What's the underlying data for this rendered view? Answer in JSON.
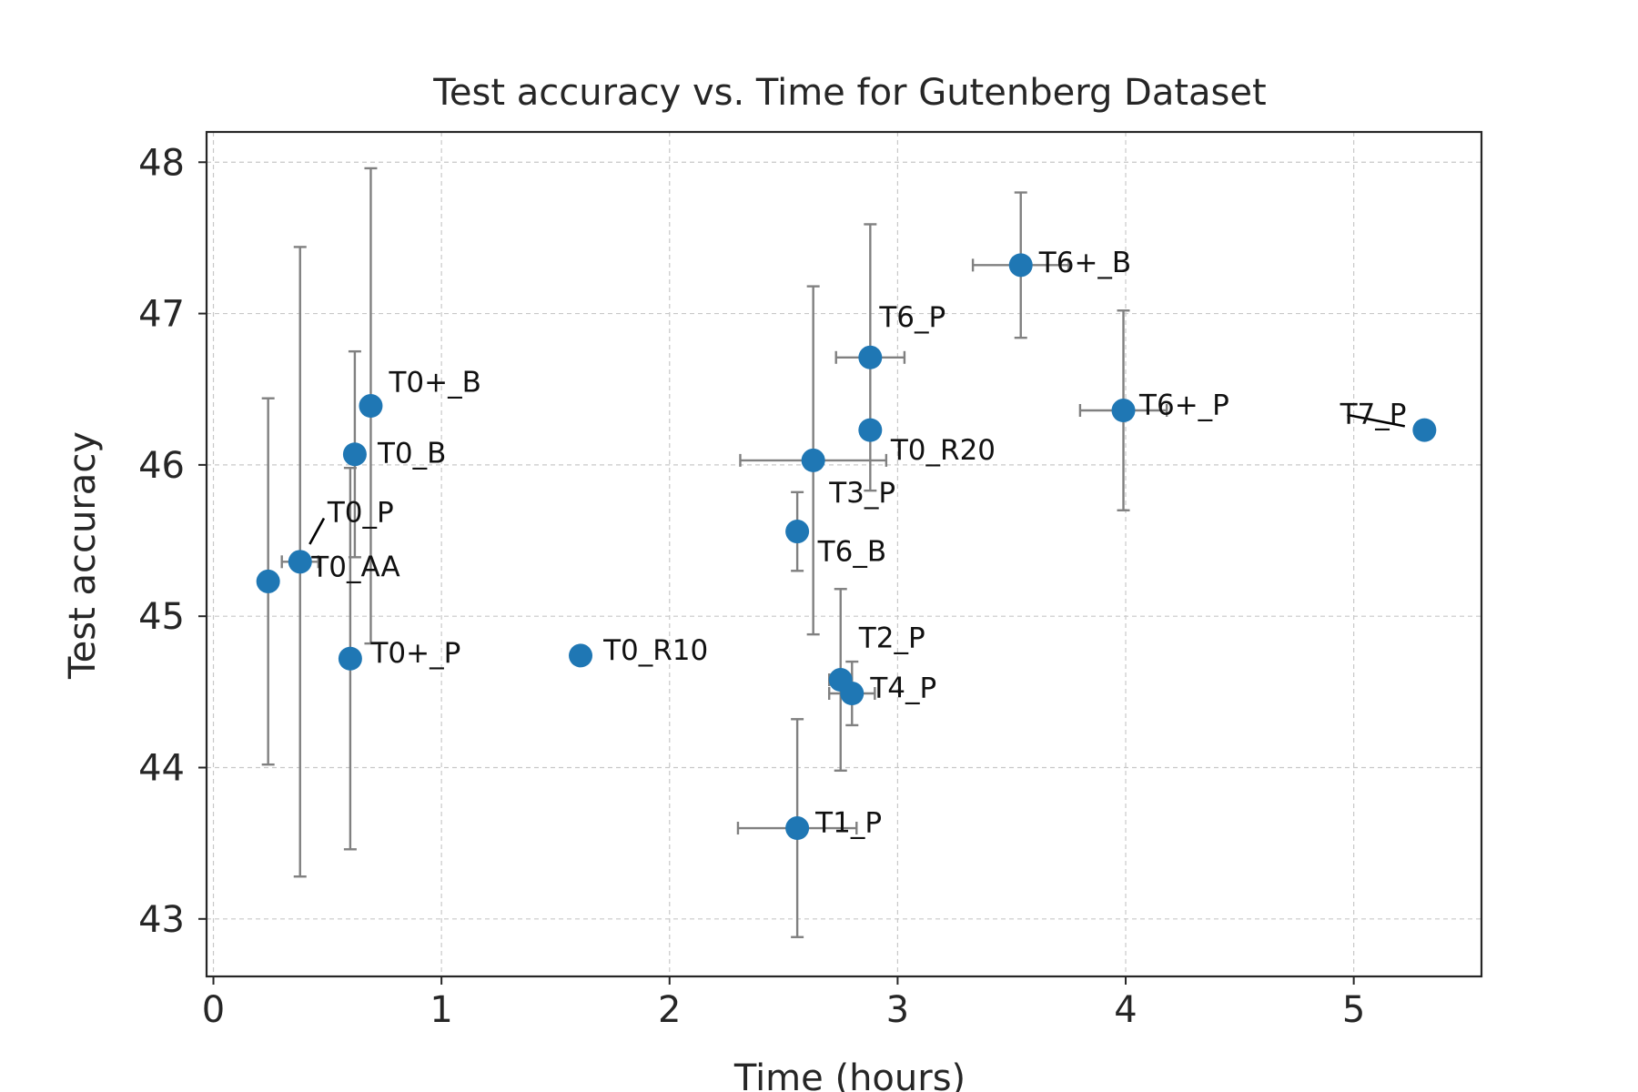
{
  "chart_data": {
    "type": "scatter",
    "title": "Test accuracy vs. Time for Gutenberg Dataset",
    "xlabel": "Time (hours)",
    "ylabel": "Test accuracy",
    "xlim": [
      -0.03,
      5.56
    ],
    "ylim": [
      42.62,
      48.2
    ],
    "xticks": [
      0,
      1,
      2,
      3,
      4,
      5
    ],
    "yticks": [
      43,
      44,
      45,
      46,
      47,
      48
    ],
    "grid": true,
    "marker_color": "#1f77b4",
    "errorbar_color": "#808080",
    "points": [
      {
        "label": "T0_AA",
        "x": 0.24,
        "y": 45.23,
        "xerr": 0.0,
        "yerr": 1.21,
        "text_x": 0.43,
        "text_y": 45.33
      },
      {
        "label": "T0_P",
        "x": 0.38,
        "y": 45.36,
        "xerr": 0.08,
        "yerr": 2.08,
        "text_x": 0.5,
        "text_y": 45.69
      },
      {
        "label": "T0+_P",
        "x": 0.6,
        "y": 44.72,
        "xerr": 0.0,
        "yerr": 1.26,
        "text_x": 0.69,
        "text_y": 44.76
      },
      {
        "label": "T0_B",
        "x": 0.62,
        "y": 46.07,
        "xerr": 0.0,
        "yerr": 0.68,
        "text_x": 0.72,
        "text_y": 46.08
      },
      {
        "label": "T0+_B",
        "x": 0.69,
        "y": 46.39,
        "xerr": 0.0,
        "yerr": 1.57,
        "text_x": 0.77,
        "text_y": 46.55
      },
      {
        "label": "T0_R10",
        "x": 1.61,
        "y": 44.74,
        "xerr": 0.0,
        "yerr": 0.0,
        "text_x": 1.71,
        "text_y": 44.78
      },
      {
        "label": "T1_P",
        "x": 2.56,
        "y": 43.6,
        "xerr": 0.26,
        "yerr": 0.72,
        "text_x": 2.64,
        "text_y": 43.64
      },
      {
        "label": "T6_B",
        "x": 2.56,
        "y": 45.56,
        "xerr": 0.0,
        "yerr": 0.26,
        "text_x": 2.65,
        "text_y": 45.43
      },
      {
        "label": "T3_P",
        "x": 2.63,
        "y": 46.03,
        "xerr": 0.32,
        "yerr": 1.15,
        "text_x": 2.7,
        "text_y": 45.82
      },
      {
        "label": "T2_P",
        "x": 2.75,
        "y": 44.58,
        "xerr": 0.05,
        "yerr": 0.6,
        "text_x": 2.83,
        "text_y": 44.86
      },
      {
        "label": "T4_P",
        "x": 2.8,
        "y": 44.49,
        "xerr": 0.1,
        "yerr": 0.21,
        "text_x": 2.88,
        "text_y": 44.53
      },
      {
        "label": "T0_R20",
        "x": 2.88,
        "y": 46.23,
        "xerr": 0.0,
        "yerr": 0.0,
        "text_x": 2.97,
        "text_y": 46.1
      },
      {
        "label": "T6_P",
        "x": 2.88,
        "y": 46.71,
        "xerr": 0.15,
        "yerr": 0.88,
        "text_x": 2.92,
        "text_y": 46.98
      },
      {
        "label": "T6+_B",
        "x": 3.54,
        "y": 47.32,
        "xerr": 0.21,
        "yerr": 0.48,
        "text_x": 3.62,
        "text_y": 47.34
      },
      {
        "label": "T6+_P",
        "x": 3.99,
        "y": 46.36,
        "xerr": 0.19,
        "yerr": 0.66,
        "text_x": 4.06,
        "text_y": 46.4
      },
      {
        "label": "T7_P",
        "x": 5.31,
        "y": 46.23,
        "xerr": 0.0,
        "yerr": 0.0,
        "text_x": 4.94,
        "text_y": 46.34
      }
    ]
  }
}
